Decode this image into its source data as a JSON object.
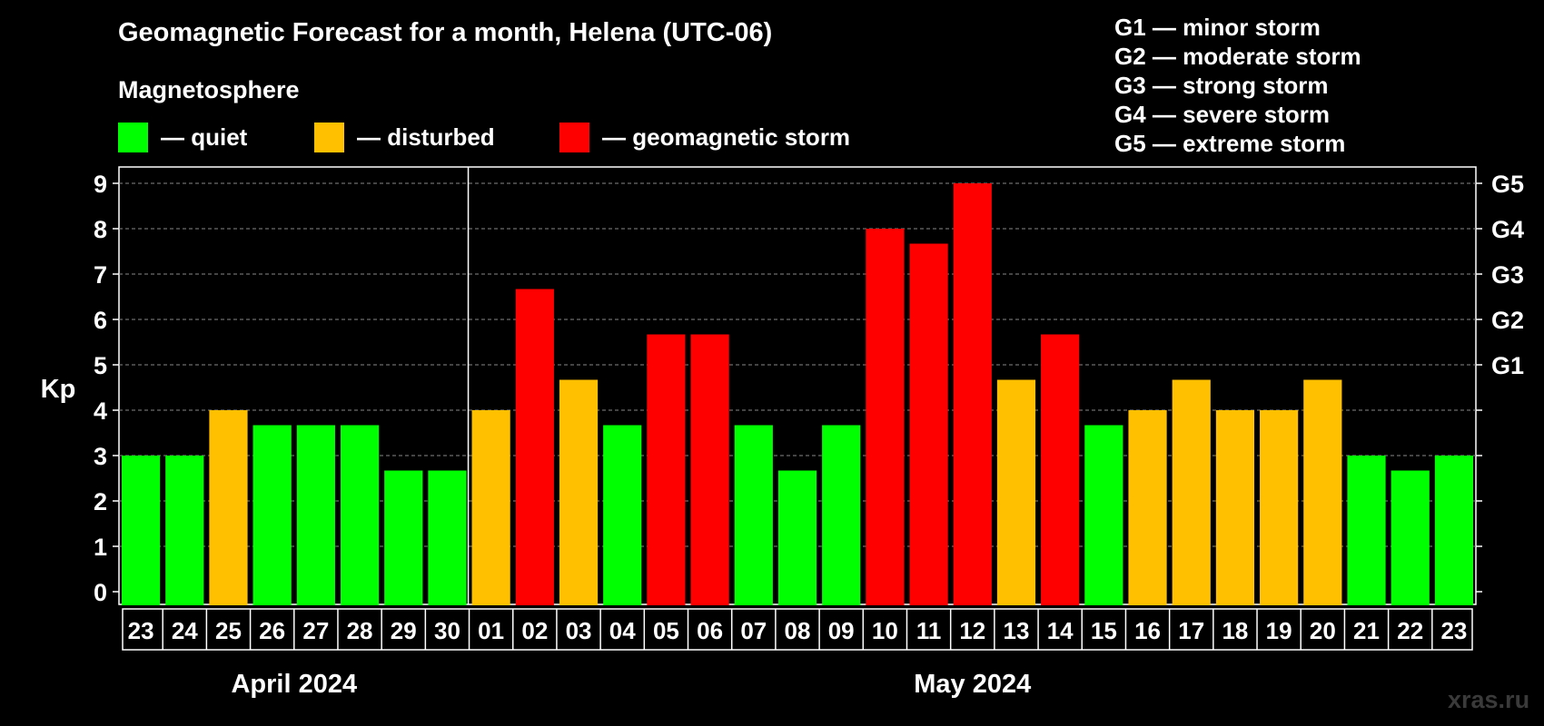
{
  "title": "Geomagnetic Forecast for a month, Helena (UTC-06)",
  "legend": {
    "heading": "Magnetosphere",
    "items": [
      {
        "label": "— quiet",
        "color": "#00ff00"
      },
      {
        "label": "— disturbed",
        "color": "#ffc000"
      },
      {
        "label": "— geomagnetic storm",
        "color": "#ff0000"
      }
    ]
  },
  "storm_scale": [
    "G1 — minor storm",
    "G2 — moderate storm",
    "G3 — strong storm",
    "G4 — severe storm",
    "G5 — extreme storm"
  ],
  "watermark": "xras.ru",
  "chart_data": {
    "type": "bar",
    "ylabel": "Kp",
    "ylim": [
      0,
      9
    ],
    "y_ticks": [
      "0",
      "1",
      "2",
      "3",
      "4",
      "5",
      "6",
      "7",
      "8",
      "9"
    ],
    "right_ticks": [
      {
        "label": "G1",
        "value": 5
      },
      {
        "label": "G2",
        "value": 6
      },
      {
        "label": "G3",
        "value": 7
      },
      {
        "label": "G4",
        "value": 8
      },
      {
        "label": "G5",
        "value": 9
      }
    ],
    "grid": "dashed horizontal",
    "month_labels": [
      {
        "label": "April 2024",
        "span": [
          0,
          7
        ]
      },
      {
        "label": "May 2024",
        "span": [
          8,
          30
        ]
      }
    ],
    "categories": [
      "23",
      "24",
      "25",
      "26",
      "27",
      "28",
      "29",
      "30",
      "01",
      "02",
      "03",
      "04",
      "05",
      "06",
      "07",
      "08",
      "09",
      "10",
      "11",
      "12",
      "13",
      "14",
      "15",
      "16",
      "17",
      "18",
      "19",
      "20",
      "21",
      "22",
      "23"
    ],
    "values": [
      3.0,
      3.0,
      4.0,
      3.67,
      3.67,
      3.67,
      2.67,
      2.67,
      4.0,
      6.67,
      4.67,
      3.67,
      5.67,
      5.67,
      3.67,
      2.67,
      3.67,
      8.0,
      7.67,
      9.0,
      4.67,
      5.67,
      3.67,
      4.0,
      4.67,
      4.0,
      4.0,
      4.67,
      3.0,
      2.67,
      3.0
    ],
    "colors": [
      "quiet",
      "quiet",
      "disturbed",
      "quiet",
      "quiet",
      "quiet",
      "quiet",
      "quiet",
      "disturbed",
      "storm",
      "disturbed",
      "quiet",
      "storm",
      "storm",
      "quiet",
      "quiet",
      "quiet",
      "storm",
      "storm",
      "storm",
      "disturbed",
      "storm",
      "quiet",
      "disturbed",
      "disturbed",
      "disturbed",
      "disturbed",
      "disturbed",
      "quiet",
      "quiet",
      "quiet"
    ],
    "color_map": {
      "quiet": "#00ff00",
      "disturbed": "#ffc000",
      "storm": "#ff0000"
    }
  }
}
